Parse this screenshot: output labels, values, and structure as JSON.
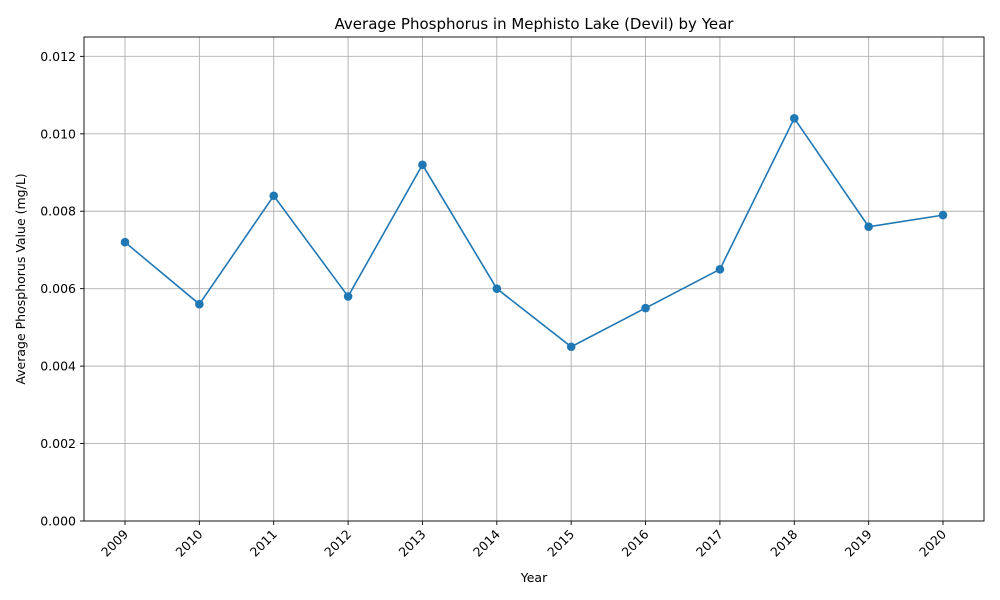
{
  "chart_data": {
    "type": "line",
    "title": "Average Phosphorus in Mephisto Lake (Devil) by Year",
    "xlabel": "Year",
    "ylabel": "Average Phosphorus Value (mg/L)",
    "categories": [
      "2009",
      "2010",
      "2011",
      "2012",
      "2013",
      "2014",
      "2015",
      "2016",
      "2017",
      "2018",
      "2019",
      "2020"
    ],
    "series": [
      {
        "values": [
          0.0072,
          0.0056,
          0.0084,
          0.0058,
          0.0092,
          0.006,
          0.0045,
          0.0055,
          0.0065,
          0.0104,
          0.0076,
          0.0079
        ],
        "color": "#1f77b4",
        "marker": "circle"
      }
    ],
    "ylim": [
      0,
      0.0125
    ],
    "yticks": [
      "0.000",
      "0.002",
      "0.004",
      "0.006",
      "0.008",
      "0.010",
      "0.012"
    ],
    "grid": true,
    "legend": "none"
  }
}
